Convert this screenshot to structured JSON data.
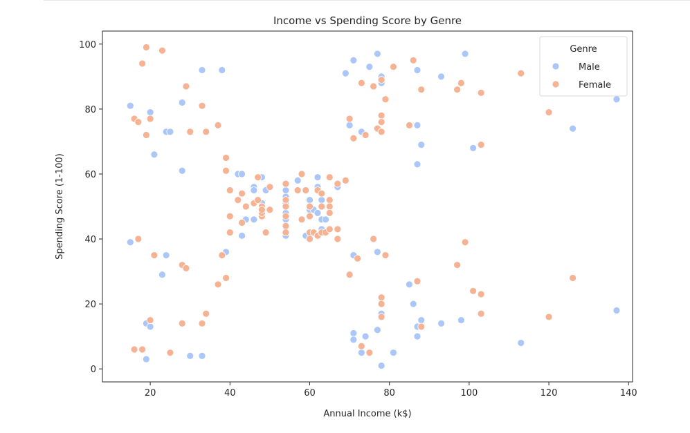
{
  "chart_data": {
    "type": "scatter",
    "title": "Income vs Spending Score by Genre",
    "xlabel": "Annual Income (k$)",
    "ylabel": "Spending Score (1-100)",
    "xlim": [
      8,
      141
    ],
    "ylim": [
      -4,
      104
    ],
    "xticks": [
      20,
      40,
      60,
      80,
      100,
      120,
      140
    ],
    "yticks": [
      0,
      20,
      40,
      60,
      80,
      100
    ],
    "legend": {
      "title": "Genre",
      "position": "top-right"
    },
    "grid": false,
    "series": [
      {
        "name": "Male",
        "color": "#abc6f9",
        "points": [
          [
            15,
            39
          ],
          [
            15,
            81
          ],
          [
            19,
            3
          ],
          [
            19,
            14
          ],
          [
            20,
            13
          ],
          [
            20,
            79
          ],
          [
            21,
            66
          ],
          [
            23,
            29
          ],
          [
            24,
            35
          ],
          [
            24,
            73
          ],
          [
            25,
            73
          ],
          [
            28,
            82
          ],
          [
            28,
            61
          ],
          [
            30,
            4
          ],
          [
            33,
            4
          ],
          [
            33,
            92
          ],
          [
            38,
            92
          ],
          [
            39,
            36
          ],
          [
            42,
            60
          ],
          [
            43,
            60
          ],
          [
            43,
            41
          ],
          [
            44,
            46
          ],
          [
            46,
            46
          ],
          [
            46,
            56
          ],
          [
            46,
            55
          ],
          [
            48,
            59
          ],
          [
            48,
            51
          ],
          [
            49,
            55
          ],
          [
            54,
            41
          ],
          [
            54,
            42
          ],
          [
            54,
            46
          ],
          [
            54,
            48
          ],
          [
            54,
            51
          ],
          [
            54,
            53
          ],
          [
            54,
            55
          ],
          [
            57,
            58
          ],
          [
            59,
            41
          ],
          [
            60,
            52
          ],
          [
            60,
            49
          ],
          [
            61,
            49
          ],
          [
            61,
            42
          ],
          [
            62,
            59
          ],
          [
            62,
            56
          ],
          [
            62,
            48
          ],
          [
            63,
            52
          ],
          [
            63,
            43
          ],
          [
            63,
            46
          ],
          [
            64,
            46
          ],
          [
            67,
            56
          ],
          [
            69,
            91
          ],
          [
            70,
            75
          ],
          [
            71,
            35
          ],
          [
            71,
            11
          ],
          [
            71,
            9
          ],
          [
            71,
            95
          ],
          [
            73,
            73
          ],
          [
            73,
            5
          ],
          [
            74,
            10
          ],
          [
            75,
            93
          ],
          [
            77,
            12
          ],
          [
            77,
            36
          ],
          [
            77,
            97
          ],
          [
            78,
            1
          ],
          [
            78,
            90
          ],
          [
            78,
            88
          ],
          [
            78,
            17
          ],
          [
            81,
            5
          ],
          [
            85,
            26
          ],
          [
            86,
            20
          ],
          [
            87,
            63
          ],
          [
            87,
            13
          ],
          [
            87,
            10
          ],
          [
            87,
            75
          ],
          [
            87,
            92
          ],
          [
            88,
            69
          ],
          [
            88,
            15
          ],
          [
            93,
            90
          ],
          [
            93,
            14
          ],
          [
            98,
            15
          ],
          [
            99,
            97
          ],
          [
            101,
            68
          ],
          [
            113,
            8
          ],
          [
            126,
            74
          ],
          [
            137,
            18
          ],
          [
            137,
            83
          ]
        ]
      },
      {
        "name": "Female",
        "color": "#f5b394",
        "points": [
          [
            16,
            6
          ],
          [
            16,
            77
          ],
          [
            17,
            40
          ],
          [
            17,
            76
          ],
          [
            18,
            6
          ],
          [
            18,
            94
          ],
          [
            19,
            72
          ],
          [
            19,
            99
          ],
          [
            20,
            15
          ],
          [
            20,
            77
          ],
          [
            21,
            35
          ],
          [
            23,
            98
          ],
          [
            25,
            5
          ],
          [
            28,
            14
          ],
          [
            28,
            32
          ],
          [
            29,
            31
          ],
          [
            29,
            87
          ],
          [
            30,
            73
          ],
          [
            33,
            14
          ],
          [
            33,
            81
          ],
          [
            34,
            17
          ],
          [
            34,
            73
          ],
          [
            37,
            26
          ],
          [
            37,
            75
          ],
          [
            38,
            35
          ],
          [
            39,
            28
          ],
          [
            39,
            65
          ],
          [
            39,
            61
          ],
          [
            40,
            55
          ],
          [
            40,
            47
          ],
          [
            40,
            42
          ],
          [
            42,
            52
          ],
          [
            43,
            54
          ],
          [
            43,
            45
          ],
          [
            44,
            50
          ],
          [
            46,
            51
          ],
          [
            47,
            59
          ],
          [
            47,
            52
          ],
          [
            48,
            50
          ],
          [
            48,
            47
          ],
          [
            48,
            48
          ],
          [
            48,
            49
          ],
          [
            49,
            42
          ],
          [
            50,
            56
          ],
          [
            50,
            49
          ],
          [
            54,
            44
          ],
          [
            54,
            47
          ],
          [
            54,
            52
          ],
          [
            54,
            50
          ],
          [
            54,
            57
          ],
          [
            54,
            42
          ],
          [
            57,
            55
          ],
          [
            58,
            46
          ],
          [
            58,
            60
          ],
          [
            59,
            55
          ],
          [
            60,
            42
          ],
          [
            60,
            47
          ],
          [
            60,
            50
          ],
          [
            60,
            40
          ],
          [
            61,
            42
          ],
          [
            62,
            41
          ],
          [
            62,
            55
          ],
          [
            63,
            50
          ],
          [
            63,
            54
          ],
          [
            63,
            42
          ],
          [
            64,
            42
          ],
          [
            65,
            52
          ],
          [
            65,
            50
          ],
          [
            65,
            59
          ],
          [
            65,
            43
          ],
          [
            65,
            48
          ],
          [
            67,
            40
          ],
          [
            67,
            43
          ],
          [
            67,
            57
          ],
          [
            69,
            58
          ],
          [
            70,
            29
          ],
          [
            70,
            77
          ],
          [
            71,
            71
          ],
          [
            72,
            34
          ],
          [
            73,
            7
          ],
          [
            73,
            88
          ],
          [
            74,
            72
          ],
          [
            75,
            5
          ],
          [
            76,
            40
          ],
          [
            76,
            87
          ],
          [
            77,
            74
          ],
          [
            78,
            89
          ],
          [
            78,
            22
          ],
          [
            78,
            20
          ],
          [
            78,
            78
          ],
          [
            78,
            16
          ],
          [
            78,
            73
          ],
          [
            78,
            76
          ],
          [
            79,
            35
          ],
          [
            79,
            83
          ],
          [
            81,
            93
          ],
          [
            85,
            75
          ],
          [
            86,
            95
          ],
          [
            87,
            27
          ],
          [
            88,
            13
          ],
          [
            88,
            86
          ],
          [
            97,
            32
          ],
          [
            97,
            86
          ],
          [
            98,
            88
          ],
          [
            99,
            39
          ],
          [
            101,
            24
          ],
          [
            103,
            17
          ],
          [
            103,
            85
          ],
          [
            103,
            23
          ],
          [
            103,
            69
          ],
          [
            113,
            91
          ],
          [
            120,
            16
          ],
          [
            120,
            79
          ],
          [
            126,
            28
          ]
        ]
      }
    ]
  }
}
